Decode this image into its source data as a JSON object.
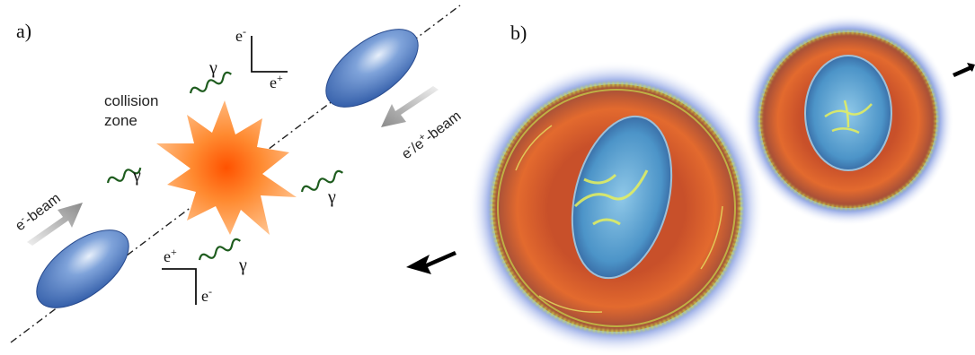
{
  "panel_a": {
    "label": "a)",
    "collision_zone_line1": "collision",
    "collision_zone_line2": "zone",
    "beam_left": {
      "base": "e",
      "sup": "-",
      "suffix": "-beam"
    },
    "beam_right": {
      "base1": "e",
      "sup1": "-",
      "mid": "/e",
      "sup2": "+",
      "suffix": "-beam"
    },
    "axes_top": {
      "vertical": {
        "base": "e",
        "sup": "-"
      },
      "horizontal": {
        "base": "e",
        "sup": "+"
      }
    },
    "axes_bottom": {
      "vertical": {
        "base": "e",
        "sup": "+"
      },
      "horizontal": {
        "base": "e",
        "sup": "-"
      }
    },
    "photon_symbol": "γ",
    "colors": {
      "bunch": "#2f5aa6",
      "photon": "#1e5c1e",
      "arrow": "#9a9a9a",
      "explosion": "#ff6a00"
    }
  },
  "panel_b": {
    "label": "b)",
    "colors": {
      "halo": "#1d3fb5",
      "shell": "#e05a2a",
      "core": "#5ea8d8",
      "filaments": "#d8e84a",
      "arrow": "#000000"
    }
  }
}
